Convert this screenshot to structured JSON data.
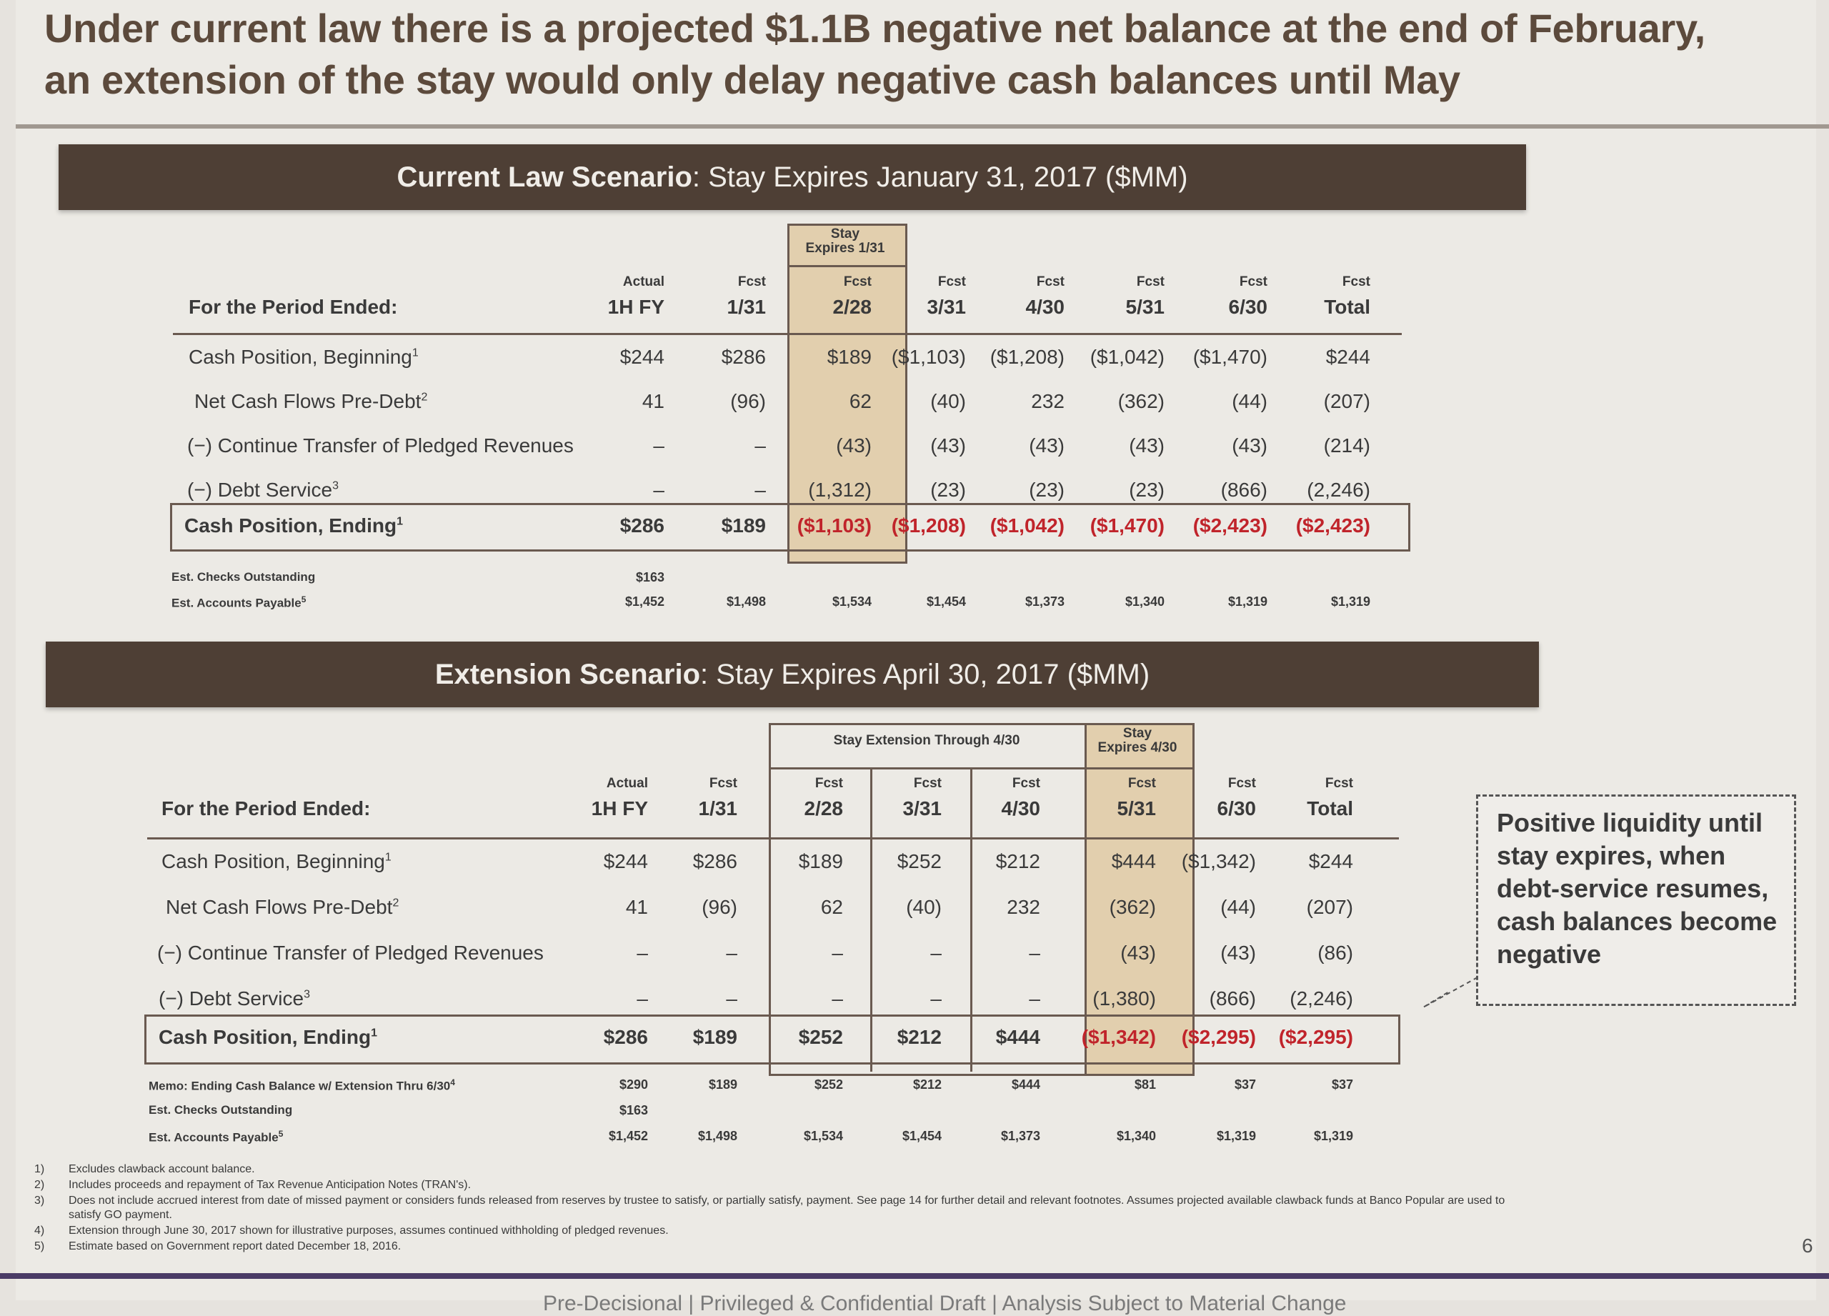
{
  "slide": {
    "title_line1": "Under current law there is a projected $1.1B negative net balance at the end of February,",
    "title_line2": "an extension of the stay would only delay negative cash balances until May",
    "page_number": "6",
    "confidentiality": "Pre-Decisional | Privileged & Confidential Draft | Analysis Subject to Material Change"
  },
  "current": {
    "banner_bold": "Current Law Scenario",
    "banner_rest": ": Stay Expires January 31, 2017 ($MM)",
    "highlight_label_1": "Stay",
    "highlight_label_2": "Expires 1/31",
    "period_label": "For the Period Ended:",
    "columns": [
      {
        "top": "Actual",
        "bottom": "1H FY"
      },
      {
        "top": "Fcst",
        "bottom": "1/31"
      },
      {
        "top": "Fcst",
        "bottom": "2/28"
      },
      {
        "top": "Fcst",
        "bottom": "3/31"
      },
      {
        "top": "Fcst",
        "bottom": "4/30"
      },
      {
        "top": "Fcst",
        "bottom": "5/31"
      },
      {
        "top": "Fcst",
        "bottom": "6/30"
      },
      {
        "top": "Fcst",
        "bottom": "Total"
      }
    ],
    "rows": [
      {
        "label": "Cash Position, Beginning",
        "sup": "1",
        "values": [
          "$244",
          "$286",
          "$189",
          "($1,103)",
          "($1,208)",
          "($1,042)",
          "($1,470)",
          "$244"
        ]
      },
      {
        "label": "Net Cash Flows Pre-Debt",
        "sup": "2",
        "values": [
          "41",
          "(96)",
          "62",
          "(40)",
          "232",
          "(362)",
          "(44)",
          "(207)"
        ]
      },
      {
        "label": "(−) Continue Transfer of Pledged Revenues",
        "sup": "",
        "values": [
          "–",
          "–",
          "(43)",
          "(43)",
          "(43)",
          "(43)",
          "(43)",
          "(214)"
        ]
      },
      {
        "label": "(−) Debt Service",
        "sup": "3",
        "values": [
          "–",
          "–",
          "(1,312)",
          "(23)",
          "(23)",
          "(23)",
          "(866)",
          "(2,246)"
        ]
      }
    ],
    "ending": {
      "label": "Cash Position, Ending",
      "sup": "1",
      "values": [
        "$286",
        "$189",
        "($1,103)",
        "($1,208)",
        "($1,042)",
        "($1,470)",
        "($2,423)",
        "($2,423)"
      ]
    },
    "memo": [
      {
        "label": "Est. Checks Outstanding",
        "values": [
          "$163",
          "",
          "",
          "",
          "",
          "",
          "",
          ""
        ]
      },
      {
        "label": "Est. Accounts Payable",
        "sup": "5",
        "values": [
          "$1,452",
          "$1,498",
          "$1,534",
          "$1,454",
          "$1,373",
          "$1,340",
          "$1,319",
          "$1,319"
        ]
      }
    ]
  },
  "extension": {
    "banner_bold": "Extension Scenario",
    "banner_rest": ": Stay Expires April 30, 2017 ($MM)",
    "group_label": "Stay Extension Through 4/30",
    "highlight_label_1": "Stay",
    "highlight_label_2": "Expires 4/30",
    "period_label": "For the Period Ended:",
    "columns": [
      {
        "top": "Actual",
        "bottom": "1H FY"
      },
      {
        "top": "Fcst",
        "bottom": "1/31"
      },
      {
        "top": "Fcst",
        "bottom": "2/28"
      },
      {
        "top": "Fcst",
        "bottom": "3/31"
      },
      {
        "top": "Fcst",
        "bottom": "4/30"
      },
      {
        "top": "Fcst",
        "bottom": "5/31"
      },
      {
        "top": "Fcst",
        "bottom": "6/30"
      },
      {
        "top": "Fcst",
        "bottom": "Total"
      }
    ],
    "rows": [
      {
        "label": "Cash Position, Beginning",
        "sup": "1",
        "values": [
          "$244",
          "$286",
          "$189",
          "$252",
          "$212",
          "$444",
          "($1,342)",
          "$244"
        ]
      },
      {
        "label": "Net Cash Flows Pre-Debt",
        "sup": "2",
        "values": [
          "41",
          "(96)",
          "62",
          "(40)",
          "232",
          "(362)",
          "(44)",
          "(207)"
        ]
      },
      {
        "label": "(−) Continue Transfer of Pledged Revenues",
        "sup": "",
        "values": [
          "–",
          "–",
          "–",
          "–",
          "–",
          "(43)",
          "(43)",
          "(86)"
        ]
      },
      {
        "label": "(−) Debt Service",
        "sup": "3",
        "values": [
          "–",
          "–",
          "–",
          "–",
          "–",
          "(1,380)",
          "(866)",
          "(2,246)"
        ]
      }
    ],
    "ending": {
      "label": "Cash Position, Ending",
      "sup": "1",
      "values": [
        "$286",
        "$189",
        "$252",
        "$212",
        "$444",
        "($1,342)",
        "($2,295)",
        "($2,295)"
      ]
    },
    "memo": [
      {
        "label": "Memo: Ending Cash Balance w/ Extension Thru 6/30",
        "sup": "4",
        "values": [
          "$290",
          "$189",
          "$252",
          "$212",
          "$444",
          "$81",
          "$37",
          "$37"
        ]
      },
      {
        "label": "Est. Checks Outstanding",
        "values": [
          "$163",
          "",
          "",
          "",
          "",
          "",
          "",
          ""
        ]
      },
      {
        "label": "Est. Accounts Payable",
        "sup": "5",
        "values": [
          "$1,452",
          "$1,498",
          "$1,534",
          "$1,454",
          "$1,373",
          "$1,340",
          "$1,319",
          "$1,319"
        ]
      }
    ]
  },
  "callout": {
    "text": "Positive liquidity until stay expires, when debt-service resumes, cash balances become negative"
  },
  "footnotes": [
    {
      "num": "1)",
      "text": "Excludes clawback account balance."
    },
    {
      "num": "2)",
      "text": "Includes proceeds and repayment of Tax Revenue Anticipation Notes (TRAN's)."
    },
    {
      "num": "3)",
      "text": "Does not include accrued interest from date of missed payment or considers funds released from reserves by trustee to satisfy, or partially satisfy, payment. See page 14 for further detail and relevant footnotes. Assumes projected available clawback funds at Banco Popular are used to"
    },
    {
      "num": "",
      "text": "satisfy GO payment."
    },
    {
      "num": "4)",
      "text": "Extension through June 30, 2017 shown for illustrative purposes, assumes continued withholding of pledged revenues."
    },
    {
      "num": "5)",
      "text": "Estimate based on Government report dated December 18, 2016."
    }
  ]
}
